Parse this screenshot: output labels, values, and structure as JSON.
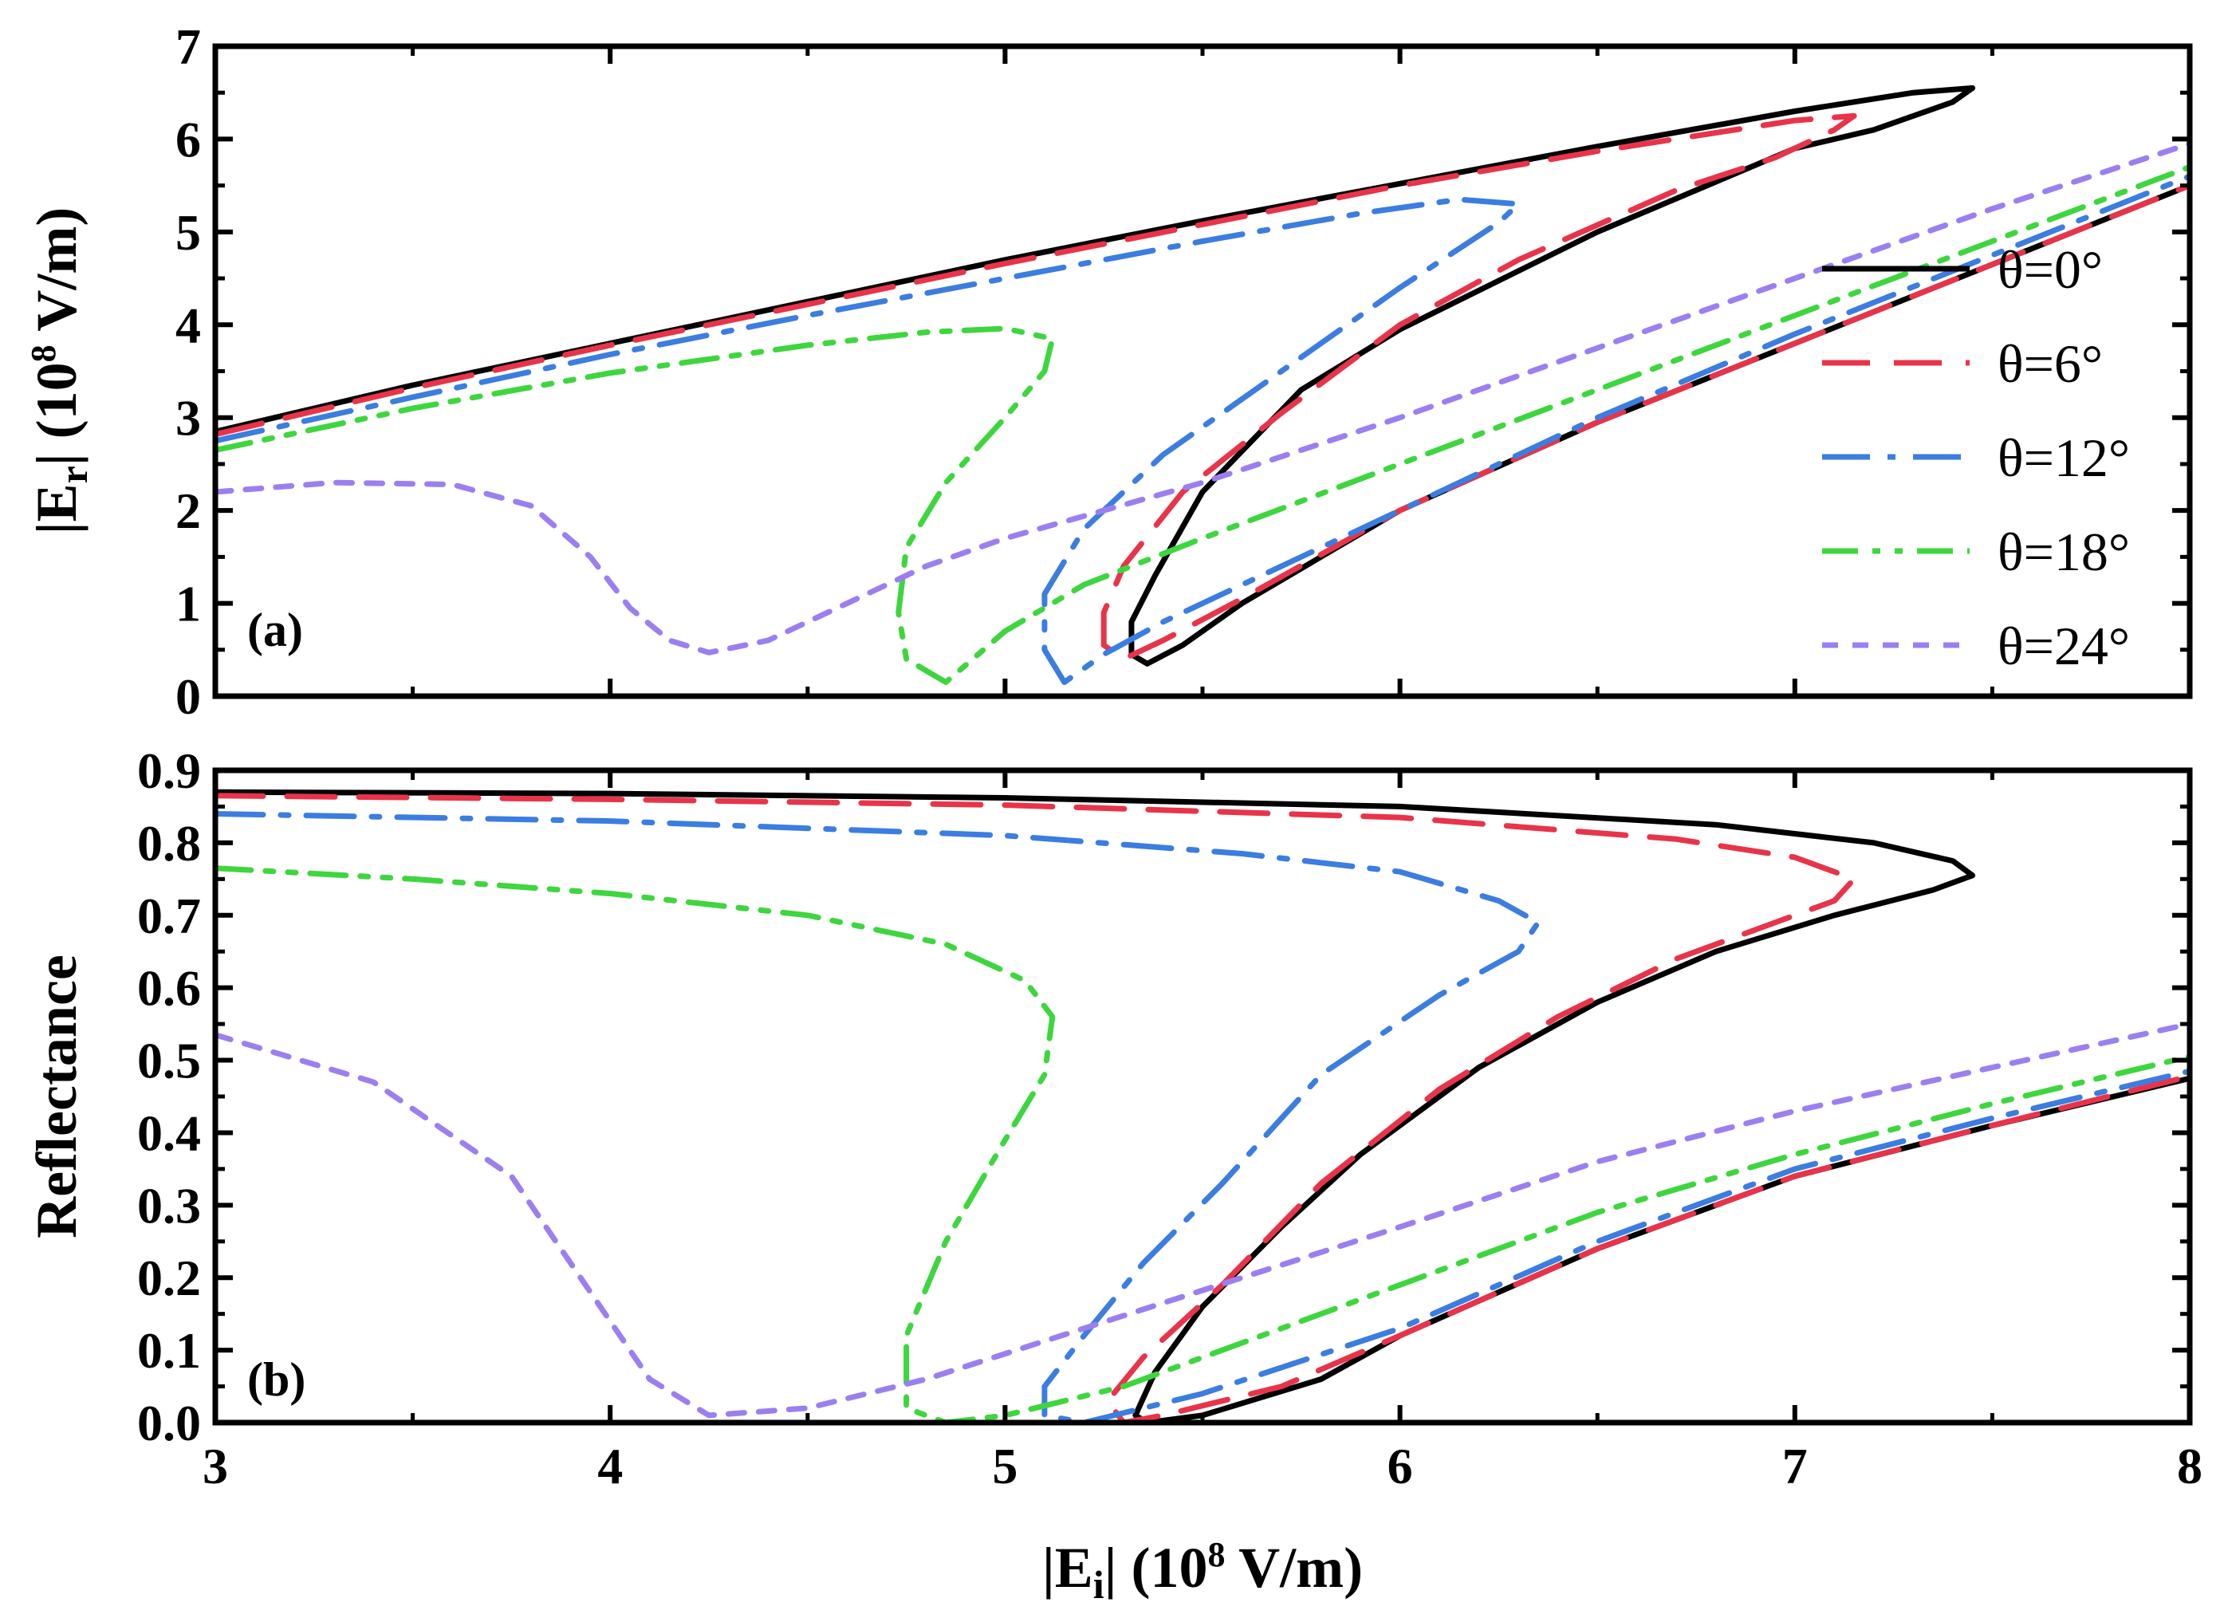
{
  "chart_data": [
    {
      "panel": "(a)",
      "type": "line",
      "xlabel": "|Ei| (10^8 V/m)",
      "ylabel": "|Er| (10^8 V/m)",
      "xlim": [
        3,
        8
      ],
      "ylim": [
        0,
        7
      ],
      "xticks": [
        3,
        4,
        5,
        6,
        7,
        8
      ],
      "yticks": [
        0,
        1,
        2,
        3,
        4,
        5,
        6,
        7
      ],
      "ytick_labels": [
        "0",
        "1",
        "2",
        "3",
        "4",
        "5",
        "6",
        "7"
      ],
      "legend_position": "right",
      "series": [
        {
          "name": "θ=0°",
          "color": "#000000",
          "dash": "solid",
          "points": [
            [
              3.0,
              2.85
            ],
            [
              3.5,
              3.35
            ],
            [
              4.0,
              3.8
            ],
            [
              4.5,
              4.25
            ],
            [
              5.0,
              4.7
            ],
            [
              5.5,
              5.12
            ],
            [
              6.0,
              5.52
            ],
            [
              6.5,
              5.92
            ],
            [
              7.0,
              6.3
            ],
            [
              7.3,
              6.5
            ],
            [
              7.45,
              6.55
            ],
            [
              7.4,
              6.4
            ],
            [
              7.2,
              6.1
            ],
            [
              7.0,
              5.9
            ],
            [
              6.5,
              5.0
            ],
            [
              6.0,
              3.95
            ],
            [
              5.75,
              3.3
            ],
            [
              5.5,
              2.2
            ],
            [
              5.38,
              1.3
            ],
            [
              5.32,
              0.8
            ],
            [
              5.32,
              0.45
            ],
            [
              5.36,
              0.35
            ],
            [
              5.45,
              0.55
            ],
            [
              5.6,
              1.0
            ],
            [
              6.0,
              2.0
            ],
            [
              6.5,
              2.95
            ],
            [
              7.0,
              3.8
            ],
            [
              7.5,
              4.65
            ],
            [
              8.0,
              5.5
            ]
          ]
        },
        {
          "name": "θ=6°",
          "color": "#e8344a",
          "dash": "dash",
          "points": [
            [
              3.0,
              2.82
            ],
            [
              3.5,
              3.32
            ],
            [
              4.0,
              3.78
            ],
            [
              4.5,
              4.22
            ],
            [
              5.0,
              4.66
            ],
            [
              5.5,
              5.08
            ],
            [
              6.0,
              5.5
            ],
            [
              6.5,
              5.87
            ],
            [
              7.0,
              6.2
            ],
            [
              7.15,
              6.25
            ],
            [
              7.1,
              6.1
            ],
            [
              6.95,
              5.8
            ],
            [
              6.7,
              5.45
            ],
            [
              6.3,
              4.7
            ],
            [
              6.0,
              4.0
            ],
            [
              5.7,
              3.05
            ],
            [
              5.45,
              2.2
            ],
            [
              5.3,
              1.4
            ],
            [
              5.25,
              0.9
            ],
            [
              5.25,
              0.55
            ],
            [
              5.3,
              0.4
            ],
            [
              5.4,
              0.6
            ],
            [
              5.6,
              1.05
            ],
            [
              6.0,
              2.0
            ],
            [
              6.5,
              2.95
            ],
            [
              7.0,
              3.8
            ],
            [
              7.5,
              4.65
            ],
            [
              8.0,
              5.5
            ]
          ]
        },
        {
          "name": "θ=12°",
          "color": "#3b7de0",
          "dash": "dashdot",
          "points": [
            [
              3.0,
              2.75
            ],
            [
              3.5,
              3.22
            ],
            [
              4.0,
              3.68
            ],
            [
              4.5,
              4.1
            ],
            [
              5.0,
              4.5
            ],
            [
              5.5,
              4.9
            ],
            [
              5.9,
              5.2
            ],
            [
              6.15,
              5.35
            ],
            [
              6.3,
              5.3
            ],
            [
              6.25,
              5.1
            ],
            [
              6.0,
              4.4
            ],
            [
              5.7,
              3.5
            ],
            [
              5.4,
              2.6
            ],
            [
              5.2,
              1.8
            ],
            [
              5.1,
              1.1
            ],
            [
              5.1,
              0.5
            ],
            [
              5.15,
              0.15
            ],
            [
              5.25,
              0.45
            ],
            [
              5.4,
              0.8
            ],
            [
              5.6,
              1.2
            ],
            [
              6.0,
              2.0
            ],
            [
              6.5,
              3.0
            ],
            [
              7.0,
              3.9
            ],
            [
              7.5,
              4.75
            ],
            [
              8.0,
              5.6
            ]
          ]
        },
        {
          "name": "θ=18°",
          "color": "#3ed63e",
          "dash": "dashdotdot",
          "points": [
            [
              3.0,
              2.65
            ],
            [
              3.5,
              3.1
            ],
            [
              4.0,
              3.48
            ],
            [
              4.5,
              3.78
            ],
            [
              4.8,
              3.92
            ],
            [
              5.0,
              3.96
            ],
            [
              5.12,
              3.85
            ],
            [
              5.1,
              3.5
            ],
            [
              5.0,
              3.0
            ],
            [
              4.85,
              2.3
            ],
            [
              4.75,
              1.6
            ],
            [
              4.73,
              0.9
            ],
            [
              4.75,
              0.4
            ],
            [
              4.85,
              0.15
            ],
            [
              5.0,
              0.7
            ],
            [
              5.2,
              1.2
            ],
            [
              5.5,
              1.7
            ],
            [
              6.0,
              2.5
            ],
            [
              6.5,
              3.3
            ],
            [
              7.0,
              4.1
            ],
            [
              7.5,
              4.9
            ],
            [
              8.0,
              5.7
            ]
          ]
        },
        {
          "name": "θ=24°",
          "color": "#9b7ff0",
          "dash": "dot",
          "points": [
            [
              3.0,
              2.2
            ],
            [
              3.3,
              2.3
            ],
            [
              3.6,
              2.28
            ],
            [
              3.8,
              2.05
            ],
            [
              3.95,
              1.5
            ],
            [
              4.05,
              0.95
            ],
            [
              4.15,
              0.6
            ],
            [
              4.25,
              0.47
            ],
            [
              4.4,
              0.6
            ],
            [
              4.6,
              1.0
            ],
            [
              4.8,
              1.4
            ],
            [
              5.0,
              1.7
            ],
            [
              5.5,
              2.3
            ],
            [
              6.0,
              3.0
            ],
            [
              6.5,
              3.75
            ],
            [
              7.0,
              4.5
            ],
            [
              7.5,
              5.25
            ],
            [
              8.0,
              5.95
            ]
          ]
        }
      ]
    },
    {
      "panel": "(b)",
      "type": "line",
      "xlabel": "|Ei| (10^8 V/m)",
      "ylabel": "Reflectance",
      "xlim": [
        3,
        8
      ],
      "ylim": [
        0,
        0.9
      ],
      "xticks": [
        3,
        4,
        5,
        6,
        7,
        8
      ],
      "yticks": [
        0,
        0.1,
        0.2,
        0.3,
        0.4,
        0.5,
        0.6,
        0.7,
        0.8,
        0.9
      ],
      "ytick_labels": [
        "0.0",
        "0.1",
        "0.2",
        "0.3",
        "0.4",
        "0.5",
        "0.6",
        "0.7",
        "0.8",
        "0.9"
      ],
      "series": [
        {
          "name": "θ=0°",
          "color": "#000000",
          "dash": "solid",
          "points": [
            [
              3.0,
              0.87
            ],
            [
              4.0,
              0.868
            ],
            [
              5.0,
              0.862
            ],
            [
              6.0,
              0.85
            ],
            [
              6.8,
              0.825
            ],
            [
              7.2,
              0.8
            ],
            [
              7.4,
              0.775
            ],
            [
              7.45,
              0.755
            ],
            [
              7.35,
              0.735
            ],
            [
              7.1,
              0.7
            ],
            [
              6.8,
              0.65
            ],
            [
              6.5,
              0.58
            ],
            [
              6.2,
              0.49
            ],
            [
              5.9,
              0.37
            ],
            [
              5.7,
              0.27
            ],
            [
              5.5,
              0.16
            ],
            [
              5.38,
              0.07
            ],
            [
              5.33,
              0.01
            ],
            [
              5.36,
              0.0
            ],
            [
              5.5,
              0.01
            ],
            [
              5.8,
              0.06
            ],
            [
              6.0,
              0.12
            ],
            [
              6.5,
              0.24
            ],
            [
              7.0,
              0.34
            ],
            [
              7.5,
              0.41
            ],
            [
              8.0,
              0.475
            ]
          ]
        },
        {
          "name": "θ=6°",
          "color": "#e8344a",
          "dash": "dash",
          "points": [
            [
              3.0,
              0.865
            ],
            [
              4.0,
              0.86
            ],
            [
              5.0,
              0.852
            ],
            [
              6.0,
              0.835
            ],
            [
              6.7,
              0.805
            ],
            [
              7.0,
              0.78
            ],
            [
              7.15,
              0.75
            ],
            [
              7.1,
              0.72
            ],
            [
              6.95,
              0.69
            ],
            [
              6.7,
              0.64
            ],
            [
              6.4,
              0.56
            ],
            [
              6.1,
              0.46
            ],
            [
              5.8,
              0.33
            ],
            [
              5.55,
              0.19
            ],
            [
              5.35,
              0.09
            ],
            [
              5.26,
              0.03
            ],
            [
              5.3,
              0.0
            ],
            [
              5.4,
              0.01
            ],
            [
              5.7,
              0.05
            ],
            [
              6.0,
              0.12
            ],
            [
              6.5,
              0.24
            ],
            [
              7.0,
              0.34
            ],
            [
              7.5,
              0.41
            ],
            [
              8.0,
              0.478
            ]
          ]
        },
        {
          "name": "θ=12°",
          "color": "#3b7de0",
          "dash": "dashdot",
          "points": [
            [
              3.0,
              0.84
            ],
            [
              4.0,
              0.83
            ],
            [
              5.0,
              0.81
            ],
            [
              5.6,
              0.785
            ],
            [
              6.0,
              0.76
            ],
            [
              6.25,
              0.72
            ],
            [
              6.35,
              0.69
            ],
            [
              6.3,
              0.65
            ],
            [
              6.1,
              0.59
            ],
            [
              5.8,
              0.48
            ],
            [
              5.55,
              0.33
            ],
            [
              5.35,
              0.22
            ],
            [
              5.2,
              0.12
            ],
            [
              5.1,
              0.05
            ],
            [
              5.1,
              0.01
            ],
            [
              5.2,
              0.0
            ],
            [
              5.5,
              0.04
            ],
            [
              6.0,
              0.13
            ],
            [
              6.5,
              0.25
            ],
            [
              7.0,
              0.35
            ],
            [
              7.5,
              0.42
            ],
            [
              8.0,
              0.485
            ]
          ]
        },
        {
          "name": "θ=18°",
          "color": "#3ed63e",
          "dash": "dashdotdot",
          "points": [
            [
              3.0,
              0.765
            ],
            [
              3.5,
              0.75
            ],
            [
              4.0,
              0.73
            ],
            [
              4.5,
              0.7
            ],
            [
              4.85,
              0.66
            ],
            [
              5.05,
              0.61
            ],
            [
              5.12,
              0.56
            ],
            [
              5.1,
              0.48
            ],
            [
              5.0,
              0.39
            ],
            [
              4.85,
              0.25
            ],
            [
              4.75,
              0.12
            ],
            [
              4.75,
              0.02
            ],
            [
              4.85,
              0.0
            ],
            [
              5.0,
              0.01
            ],
            [
              5.3,
              0.05
            ],
            [
              5.6,
              0.11
            ],
            [
              6.0,
              0.19
            ],
            [
              6.5,
              0.29
            ],
            [
              7.0,
              0.37
            ],
            [
              7.5,
              0.44
            ],
            [
              8.0,
              0.505
            ]
          ]
        },
        {
          "name": "θ=24°",
          "color": "#9b7ff0",
          "dash": "dot",
          "points": [
            [
              3.0,
              0.535
            ],
            [
              3.4,
              0.47
            ],
            [
              3.75,
              0.34
            ],
            [
              3.95,
              0.18
            ],
            [
              4.1,
              0.06
            ],
            [
              4.25,
              0.01
            ],
            [
              4.5,
              0.02
            ],
            [
              4.8,
              0.06
            ],
            [
              5.2,
              0.13
            ],
            [
              5.6,
              0.2
            ],
            [
              6.0,
              0.27
            ],
            [
              6.5,
              0.36
            ],
            [
              7.0,
              0.43
            ],
            [
              7.5,
              0.49
            ],
            [
              8.0,
              0.55
            ]
          ]
        }
      ]
    }
  ],
  "panels": {
    "a": {
      "label": "(a)"
    },
    "b": {
      "label": "(b)"
    }
  },
  "axes": {
    "top_ylabel": {
      "main": "|E",
      "sub": "r",
      "rest": "| (10",
      "sup": "8",
      "tail": " V/m)"
    },
    "bottom_ylabel": "Reflectance",
    "xlabel": {
      "main": "|E",
      "sub": "i",
      "rest": "| (10",
      "sup": "8",
      "tail": " V/m)"
    },
    "xtick_labels": [
      "3",
      "4",
      "5",
      "6",
      "7",
      "8"
    ]
  },
  "legend": {
    "items": [
      {
        "label": "θ=0°"
      },
      {
        "label": "θ=6°"
      },
      {
        "label": "θ=12°"
      },
      {
        "label": "θ=18°"
      },
      {
        "label": "θ=24°"
      }
    ]
  }
}
